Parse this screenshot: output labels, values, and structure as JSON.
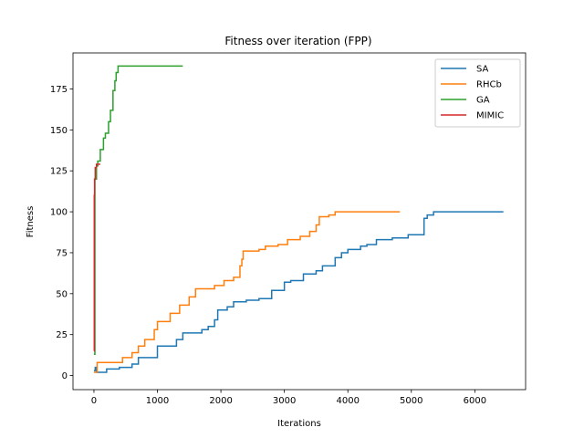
{
  "chart_data": {
    "type": "line",
    "title": "Fitness over iteration (FPP)",
    "xlabel": "Iterations",
    "ylabel": "Fitness",
    "xlim": [
      -330,
      6800
    ],
    "ylim": [
      -8.6,
      197
    ],
    "xticks": [
      0,
      1000,
      2000,
      3000,
      4000,
      5000,
      6000
    ],
    "yticks": [
      0,
      25,
      50,
      75,
      100,
      125,
      150,
      175
    ],
    "grid": false,
    "legend_position": "top-right",
    "series": [
      {
        "name": "SA",
        "color": "#1f77b4",
        "step": true,
        "points": [
          [
            0,
            3
          ],
          [
            20,
            5
          ],
          [
            40,
            2
          ],
          [
            120,
            2
          ],
          [
            200,
            4
          ],
          [
            400,
            5
          ],
          [
            600,
            7
          ],
          [
            700,
            11
          ],
          [
            1000,
            18
          ],
          [
            1300,
            22
          ],
          [
            1400,
            26
          ],
          [
            1700,
            28
          ],
          [
            1800,
            30
          ],
          [
            1900,
            34
          ],
          [
            1950,
            40
          ],
          [
            2100,
            42
          ],
          [
            2200,
            45
          ],
          [
            2400,
            46
          ],
          [
            2600,
            47
          ],
          [
            2800,
            52
          ],
          [
            3000,
            57
          ],
          [
            3100,
            58
          ],
          [
            3300,
            62
          ],
          [
            3500,
            64
          ],
          [
            3600,
            67
          ],
          [
            3800,
            72
          ],
          [
            3900,
            75
          ],
          [
            4000,
            77
          ],
          [
            4200,
            79
          ],
          [
            4300,
            80
          ],
          [
            4450,
            83
          ],
          [
            4700,
            84
          ],
          [
            4950,
            86
          ],
          [
            5200,
            96
          ],
          [
            5250,
            98
          ],
          [
            5350,
            100
          ],
          [
            6450,
            100
          ]
        ]
      },
      {
        "name": "RHCb",
        "color": "#ff7f0e",
        "step": true,
        "points": [
          [
            0,
            2
          ],
          [
            50,
            8
          ],
          [
            100,
            8
          ],
          [
            450,
            11
          ],
          [
            600,
            14
          ],
          [
            700,
            18
          ],
          [
            800,
            22
          ],
          [
            950,
            28
          ],
          [
            1000,
            33
          ],
          [
            1200,
            38
          ],
          [
            1350,
            43
          ],
          [
            1500,
            48
          ],
          [
            1600,
            53
          ],
          [
            1900,
            55
          ],
          [
            2050,
            58
          ],
          [
            2200,
            60
          ],
          [
            2300,
            67
          ],
          [
            2330,
            71
          ],
          [
            2350,
            76
          ],
          [
            2600,
            77
          ],
          [
            2700,
            79
          ],
          [
            2900,
            80
          ],
          [
            3050,
            83
          ],
          [
            3250,
            85
          ],
          [
            3400,
            88
          ],
          [
            3500,
            92
          ],
          [
            3550,
            97
          ],
          [
            3700,
            98
          ],
          [
            3800,
            100
          ],
          [
            4820,
            100
          ]
        ]
      },
      {
        "name": "GA",
        "color": "#2ca02c",
        "step": true,
        "points": [
          [
            0,
            13
          ],
          [
            15,
            120
          ],
          [
            40,
            128
          ],
          [
            60,
            131
          ],
          [
            100,
            138
          ],
          [
            150,
            145
          ],
          [
            180,
            148
          ],
          [
            230,
            155
          ],
          [
            260,
            162
          ],
          [
            300,
            174
          ],
          [
            330,
            180
          ],
          [
            350,
            185
          ],
          [
            380,
            189
          ],
          [
            1400,
            189
          ]
        ]
      },
      {
        "name": "MIMIC",
        "color": "#d62728",
        "step": true,
        "points": [
          [
            0,
            15
          ],
          [
            5,
            110
          ],
          [
            10,
            120
          ],
          [
            20,
            127
          ],
          [
            40,
            129
          ],
          [
            100,
            129
          ]
        ]
      }
    ]
  }
}
